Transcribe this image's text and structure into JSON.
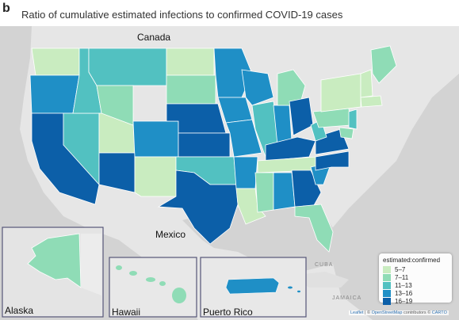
{
  "panel_letter": "b",
  "title": "Ratio of cumulative estimated infections to confirmed COVID-19 cases",
  "labels": {
    "canada": "Canada",
    "mexico": "Mexico",
    "cuba": "CUBA",
    "jamaica": "JAMAICA"
  },
  "insets": {
    "alaska": "Alaska",
    "hawaii": "Hawaii",
    "puerto_rico": "Puerto Rico"
  },
  "legend": {
    "title": "estimated:confirmed",
    "items": [
      {
        "label": "5–7",
        "color": "#c9ecc0"
      },
      {
        "label": "7–11",
        "color": "#8fdcb6"
      },
      {
        "label": "11–13",
        "color": "#52c1c1"
      },
      {
        "label": "13–16",
        "color": "#1f8fc6"
      },
      {
        "label": "16–19",
        "color": "#0c5fa8"
      }
    ]
  },
  "attribution": {
    "leaflet": "Leaflet",
    "sep1": " | © ",
    "osm": "OpenStreetMap",
    "mid": " contributors © ",
    "carto": "CARTO"
  }
}
